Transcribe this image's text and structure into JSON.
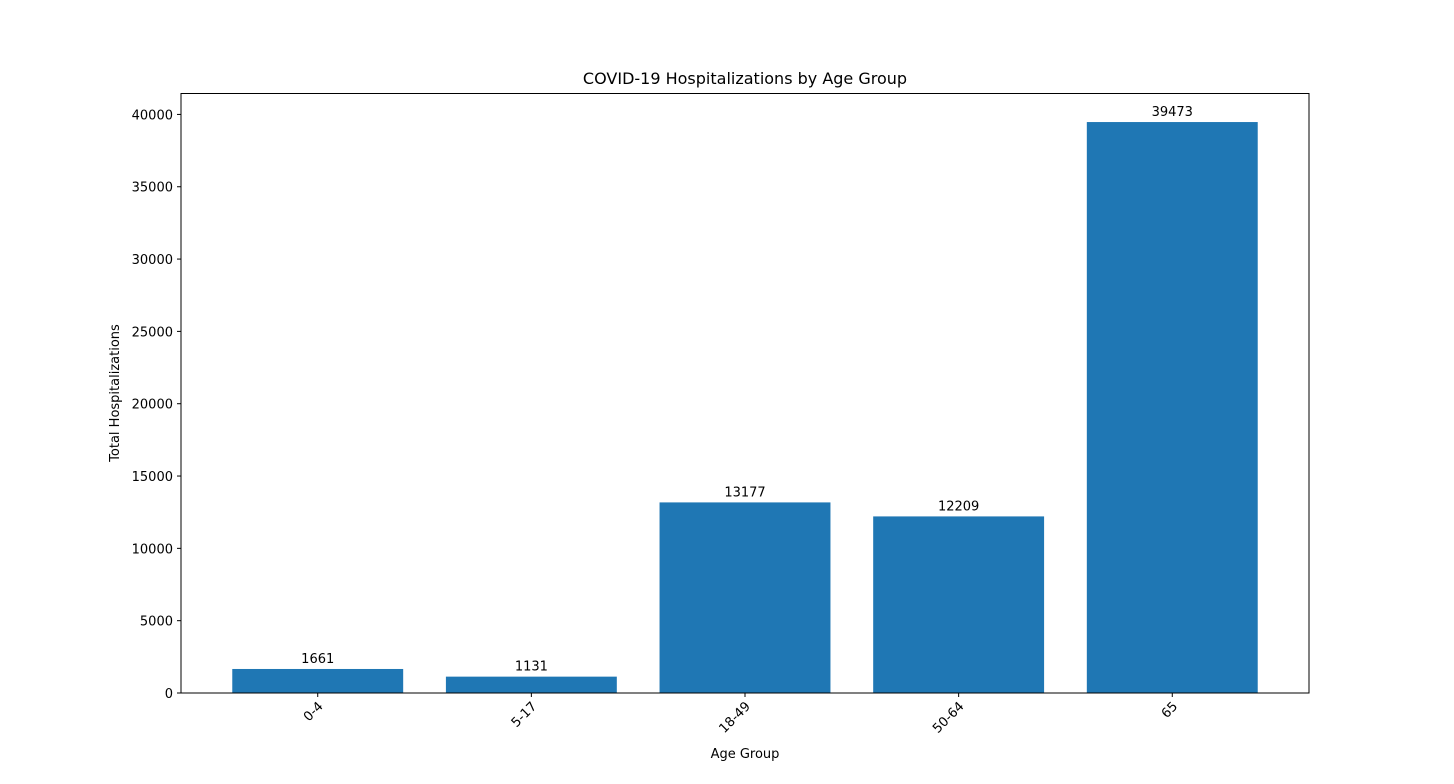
{
  "chart_data": {
    "type": "bar",
    "title": "COVID-19 Hospitalizations by Age Group",
    "xlabel": "Age Group",
    "ylabel": "Total Hospitalizations",
    "categories": [
      "0-4",
      "5-17",
      "18-49",
      "50-64",
      "65"
    ],
    "values": [
      1661,
      1131,
      13177,
      12209,
      39473
    ],
    "data_labels": [
      "1661",
      "1131",
      "13177",
      "12209",
      "39473"
    ],
    "yticks": [
      0,
      5000,
      10000,
      15000,
      20000,
      25000,
      30000,
      35000,
      40000
    ],
    "ytick_labels": [
      "0",
      "5000",
      "10000",
      "15000",
      "20000",
      "25000",
      "30000",
      "35000",
      "40000"
    ],
    "ylim": [
      0,
      41446.65
    ],
    "grid": false,
    "legend": "none",
    "xtick_rotation": 45,
    "bar_color": "#1f77b4"
  }
}
